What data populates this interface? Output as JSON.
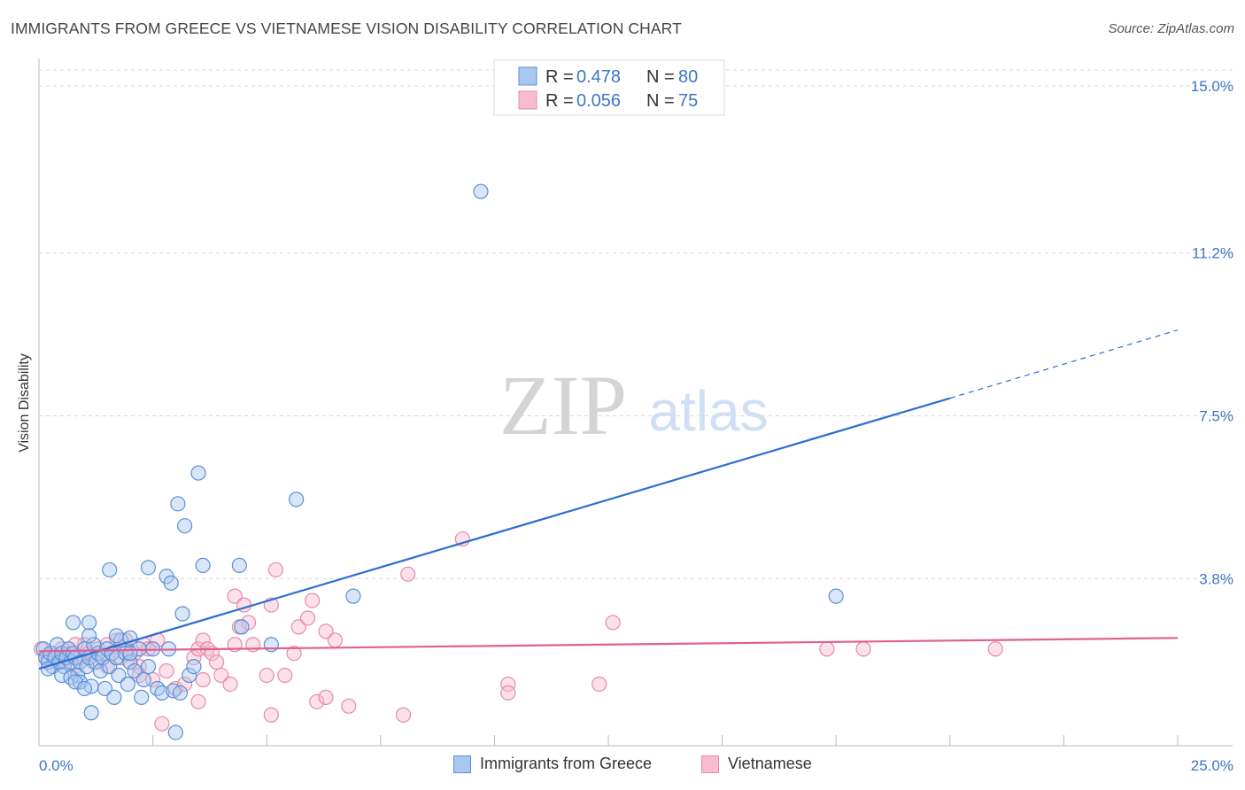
{
  "header": {
    "title": "IMMIGRANTS FROM GREECE VS VIETNAMESE VISION DISABILITY CORRELATION CHART",
    "source": "Source: ZipAtlas.com"
  },
  "watermark": {
    "zip": "ZIP",
    "atlas": "atlas"
  },
  "legend": {
    "r_label": "R =",
    "n_label": "N =",
    "items": [
      {
        "r": "0.478",
        "n": "80"
      },
      {
        "r": "0.056",
        "n": "75"
      }
    ]
  },
  "colors": {
    "blue": "#5b8fd9",
    "blue_fill": "#a9c8f0",
    "blue_line": "#2b6fd0",
    "pink": "#e58ba9",
    "pink_fill": "#f8bcd0",
    "pink_line": "#e0608f",
    "tick_text": "#3f74c8",
    "grid": "#d9d9d9"
  },
  "chart_data": {
    "type": "scatter",
    "title": "IMMIGRANTS FROM GREECE VS VIETNAMESE VISION DISABILITY CORRELATION CHART",
    "xlabel": "",
    "ylabel": "Vision Disability",
    "xlim": [
      0,
      25
    ],
    "ylim": [
      0,
      15.5
    ],
    "x_tick_labels": [
      "0.0%",
      "25.0%"
    ],
    "y_ticks": [
      3.8,
      7.5,
      11.2,
      15.0
    ],
    "y_tick_labels": [
      "3.8%",
      "7.5%",
      "11.2%",
      "15.0%"
    ],
    "grid": true,
    "series": [
      {
        "name": "Immigrants from Greece",
        "r": 0.478,
        "n": 80,
        "trend": {
          "x0": 0,
          "y0": 1.75,
          "x1": 20,
          "y1": 7.9,
          "dash_x1": 25,
          "dash_y1": 9.45
        },
        "points": [
          [
            0.1,
            2.2
          ],
          [
            0.15,
            2.0
          ],
          [
            0.2,
            1.9
          ],
          [
            0.25,
            2.1
          ],
          [
            0.3,
            1.8
          ],
          [
            0.35,
            2.0
          ],
          [
            0.4,
            2.3
          ],
          [
            0.45,
            1.9
          ],
          [
            0.5,
            2.1
          ],
          [
            0.55,
            1.8
          ],
          [
            0.6,
            2.0
          ],
          [
            0.65,
            2.2
          ],
          [
            0.7,
            1.9
          ],
          [
            0.75,
            2.1
          ],
          [
            0.8,
            2.0
          ],
          [
            0.85,
            1.6
          ],
          [
            0.9,
            1.9
          ],
          [
            1.0,
            2.2
          ],
          [
            1.05,
            1.8
          ],
          [
            1.1,
            2.0
          ],
          [
            1.2,
            2.3
          ],
          [
            1.25,
            1.9
          ],
          [
            1.3,
            2.1
          ],
          [
            1.35,
            1.7
          ],
          [
            1.4,
            2.0
          ],
          [
            1.5,
            2.2
          ],
          [
            1.55,
            1.8
          ],
          [
            1.6,
            2.1
          ],
          [
            1.7,
            2.0
          ],
          [
            1.75,
            1.6
          ],
          [
            1.8,
            2.4
          ],
          [
            1.9,
            2.1
          ],
          [
            2.0,
            1.9
          ],
          [
            2.1,
            1.7
          ],
          [
            2.2,
            2.2
          ],
          [
            2.3,
            1.5
          ],
          [
            2.4,
            1.8
          ],
          [
            0.2,
            1.75
          ],
          [
            0.5,
            1.6
          ],
          [
            0.7,
            1.55
          ],
          [
            0.9,
            1.45
          ],
          [
            1.15,
            1.35
          ],
          [
            1.45,
            1.3
          ],
          [
            1.65,
            1.1
          ],
          [
            1.95,
            1.4
          ],
          [
            2.25,
            1.1
          ],
          [
            2.6,
            1.3
          ],
          [
            2.7,
            1.2
          ],
          [
            2.95,
            1.25
          ],
          [
            3.1,
            1.2
          ],
          [
            3.3,
            1.6
          ],
          [
            3.4,
            1.8
          ],
          [
            0.75,
            2.8
          ],
          [
            1.1,
            2.8
          ],
          [
            1.1,
            2.5
          ],
          [
            1.7,
            2.5
          ],
          [
            2.0,
            2.45
          ],
          [
            2.85,
            2.2
          ],
          [
            0.8,
            1.45
          ],
          [
            1.0,
            1.3
          ],
          [
            1.55,
            4.0
          ],
          [
            2.0,
            2.1
          ],
          [
            2.5,
            2.2
          ],
          [
            2.4,
            4.05
          ],
          [
            2.8,
            3.85
          ],
          [
            2.9,
            3.7
          ],
          [
            3.05,
            5.5
          ],
          [
            3.15,
            3.0
          ],
          [
            3.2,
            5.0
          ],
          [
            3.5,
            6.2
          ],
          [
            3.6,
            4.1
          ],
          [
            4.4,
            4.1
          ],
          [
            4.45,
            2.7
          ],
          [
            5.1,
            2.3
          ],
          [
            5.65,
            5.6
          ],
          [
            6.9,
            3.4
          ],
          [
            9.7,
            12.6
          ],
          [
            17.5,
            3.4
          ],
          [
            1.15,
            0.75
          ],
          [
            3.0,
            0.3
          ]
        ]
      },
      {
        "name": "Vietnamese",
        "r": 0.056,
        "n": 75,
        "trend": {
          "x0": 0,
          "y0": 2.15,
          "x1": 25,
          "y1": 2.45
        },
        "points": [
          [
            0.05,
            2.2
          ],
          [
            0.2,
            2.0
          ],
          [
            0.3,
            2.1
          ],
          [
            0.4,
            1.9
          ],
          [
            0.5,
            2.2
          ],
          [
            0.6,
            2.0
          ],
          [
            0.7,
            2.1
          ],
          [
            0.8,
            1.8
          ],
          [
            0.9,
            2.0
          ],
          [
            1.0,
            2.3
          ],
          [
            1.1,
            2.1
          ],
          [
            1.2,
            1.9
          ],
          [
            1.3,
            2.2
          ],
          [
            1.4,
            2.0
          ],
          [
            1.5,
            1.8
          ],
          [
            1.6,
            2.1
          ],
          [
            1.7,
            2.4
          ],
          [
            1.8,
            2.0
          ],
          [
            1.9,
            2.2
          ],
          [
            2.0,
            1.9
          ],
          [
            2.1,
            2.1
          ],
          [
            2.2,
            1.8
          ],
          [
            2.3,
            2.3
          ],
          [
            2.4,
            2.2
          ],
          [
            0.5,
            1.95
          ],
          [
            0.8,
            2.3
          ],
          [
            1.5,
            2.3
          ],
          [
            1.9,
            2.4
          ],
          [
            2.2,
            1.6
          ],
          [
            2.5,
            1.5
          ],
          [
            2.6,
            2.4
          ],
          [
            2.8,
            1.7
          ],
          [
            3.0,
            1.3
          ],
          [
            3.2,
            1.4
          ],
          [
            3.4,
            2.0
          ],
          [
            3.6,
            1.5
          ],
          [
            3.5,
            2.2
          ],
          [
            3.6,
            2.4
          ],
          [
            3.7,
            2.2
          ],
          [
            3.8,
            2.1
          ],
          [
            3.5,
            1.0
          ],
          [
            3.9,
            1.9
          ],
          [
            4.0,
            1.6
          ],
          [
            4.2,
            1.4
          ],
          [
            4.3,
            2.3
          ],
          [
            4.3,
            3.4
          ],
          [
            4.4,
            2.7
          ],
          [
            4.5,
            3.2
          ],
          [
            4.6,
            2.8
          ],
          [
            4.7,
            2.3
          ],
          [
            5.0,
            1.6
          ],
          [
            5.1,
            3.2
          ],
          [
            5.2,
            4.0
          ],
          [
            5.4,
            1.6
          ],
          [
            5.6,
            2.1
          ],
          [
            5.7,
            2.7
          ],
          [
            5.9,
            2.9
          ],
          [
            6.0,
            3.3
          ],
          [
            6.3,
            2.6
          ],
          [
            6.5,
            2.4
          ],
          [
            6.1,
            1.0
          ],
          [
            6.3,
            1.1
          ],
          [
            6.8,
            0.9
          ],
          [
            8.1,
            3.9
          ],
          [
            8.0,
            0.7
          ],
          [
            9.3,
            4.7
          ],
          [
            10.3,
            1.4
          ],
          [
            10.3,
            1.2
          ],
          [
            12.3,
            1.4
          ],
          [
            12.6,
            2.8
          ],
          [
            17.3,
            2.2
          ],
          [
            18.1,
            2.2
          ],
          [
            21.0,
            2.2
          ],
          [
            5.1,
            0.7
          ],
          [
            2.7,
            0.5
          ]
        ]
      }
    ]
  },
  "bottom_legend": [
    "Immigrants from Greece",
    "Vietnamese"
  ]
}
